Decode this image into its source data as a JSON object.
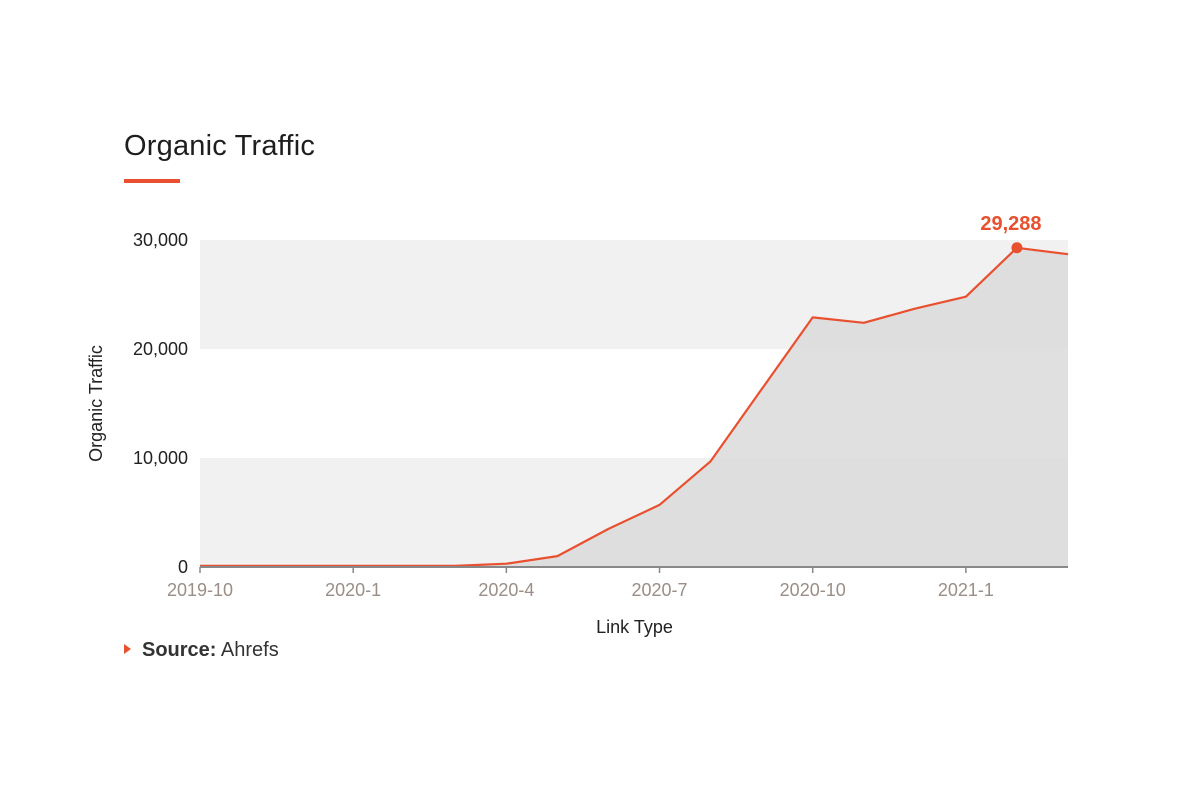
{
  "title": "Organic Traffic",
  "source": {
    "label": "Source:",
    "value": "Ahrefs"
  },
  "colors": {
    "accent": "#e8502f",
    "area": "#d9d9d9",
    "band": "#f1f1f1",
    "axis": "#888888",
    "xtick": "#9a8e86"
  },
  "chart_data": {
    "type": "area",
    "ylabel": "Organic Traffic",
    "xlabel": "Link Type",
    "x": [
      "2019-10",
      "2019-11",
      "2019-12",
      "2020-1",
      "2020-2",
      "2020-3",
      "2020-4",
      "2020-5",
      "2020-6",
      "2020-7",
      "2020-8",
      "2020-9",
      "2020-10",
      "2020-11",
      "2020-12",
      "2021-1",
      "2021-2",
      "2021-3"
    ],
    "values": [
      100,
      100,
      100,
      100,
      100,
      100,
      300,
      1000,
      3500,
      5700,
      9700,
      16300,
      22900,
      22400,
      23700,
      24800,
      29288,
      28700
    ],
    "ylim": [
      0,
      30000
    ],
    "yticks": [
      0,
      10000,
      20000,
      30000
    ],
    "ytick_labels": [
      "0",
      "10,000",
      "20,000",
      "30,000"
    ],
    "xtick_labels": [
      "2019-10",
      "2020-1",
      "2020-4",
      "2020-7",
      "2020-10",
      "2021-1"
    ],
    "highlight": {
      "x": "2021-2",
      "value": 29288,
      "label": "29,288"
    },
    "grid": "alternating horizontal bands",
    "legend": "none"
  }
}
